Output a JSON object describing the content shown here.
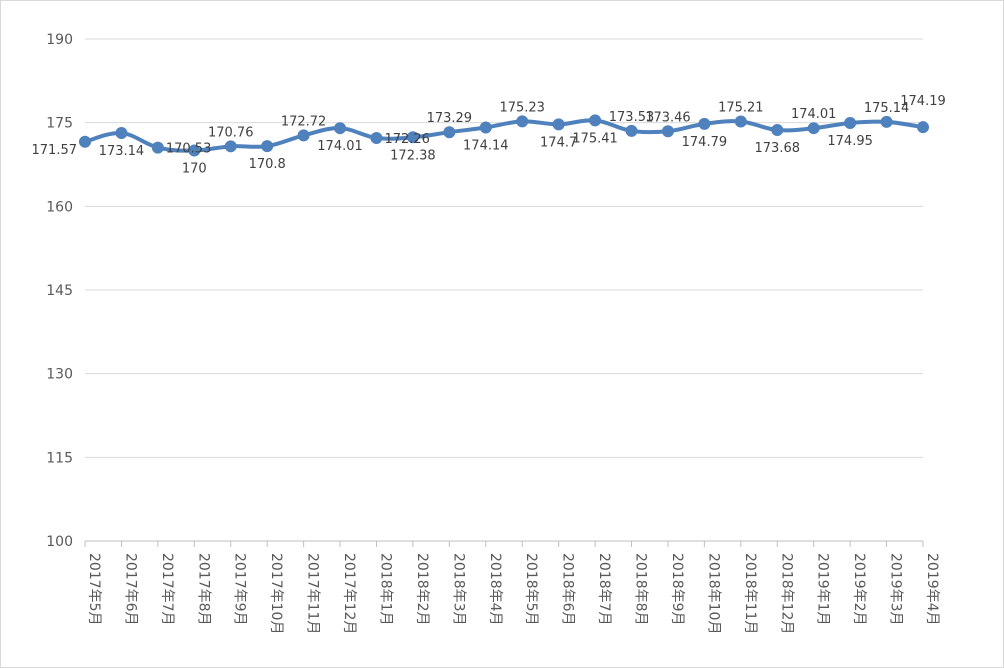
{
  "chart_data": {
    "type": "line",
    "title": "",
    "xlabel": "",
    "ylabel": "",
    "categories": [
      "2017年5月",
      "2017年6月",
      "2017年7月",
      "2017年8月",
      "2017年9月",
      "2017年10月",
      "2017年11月",
      "2017年12月",
      "2018年1月",
      "2018年2月",
      "2018年3月",
      "2018年4月",
      "2018年5月",
      "2018年6月",
      "2018年7月",
      "2018年8月",
      "2018年9月",
      "2018年10月",
      "2018年11月",
      "2018年12月",
      "2019年1月",
      "2019年2月",
      "2019年3月",
      "2019年4月"
    ],
    "series": [
      {
        "values": [
          171.57,
          173.14,
          170.53,
          170,
          170.76,
          170.8,
          172.72,
          174.01,
          172.26,
          172.38,
          173.29,
          174.14,
          175.23,
          174.7,
          175.41,
          173.53,
          173.46,
          174.79,
          175.21,
          173.68,
          174.01,
          174.95,
          175.14,
          174.19
        ],
        "data_labels": [
          "171.57",
          "173.14",
          "170.53",
          "170",
          "170.76",
          "170.8",
          "172.72",
          "174.01",
          "172.26",
          "172.38",
          "173.29",
          "174.14",
          "175.23",
          "174.7",
          "175.41",
          "173.53",
          "173.46",
          "174.79",
          "175.21",
          "173.68",
          "174.01",
          "174.95",
          "175.14",
          "174.19"
        ],
        "smooth": true,
        "markers": true
      }
    ],
    "ylim": [
      100,
      190
    ],
    "yticks": [
      100,
      115,
      130,
      145,
      160,
      175,
      190
    ],
    "ytick_labels": [
      "100",
      "115",
      "130",
      "145",
      "160",
      "175",
      "190"
    ],
    "grid": true,
    "legend": "none",
    "colors": {
      "series": "#4f81bd",
      "grid": "#d9d9d9",
      "axis": "#bfbfbf",
      "text": "#595959"
    }
  }
}
